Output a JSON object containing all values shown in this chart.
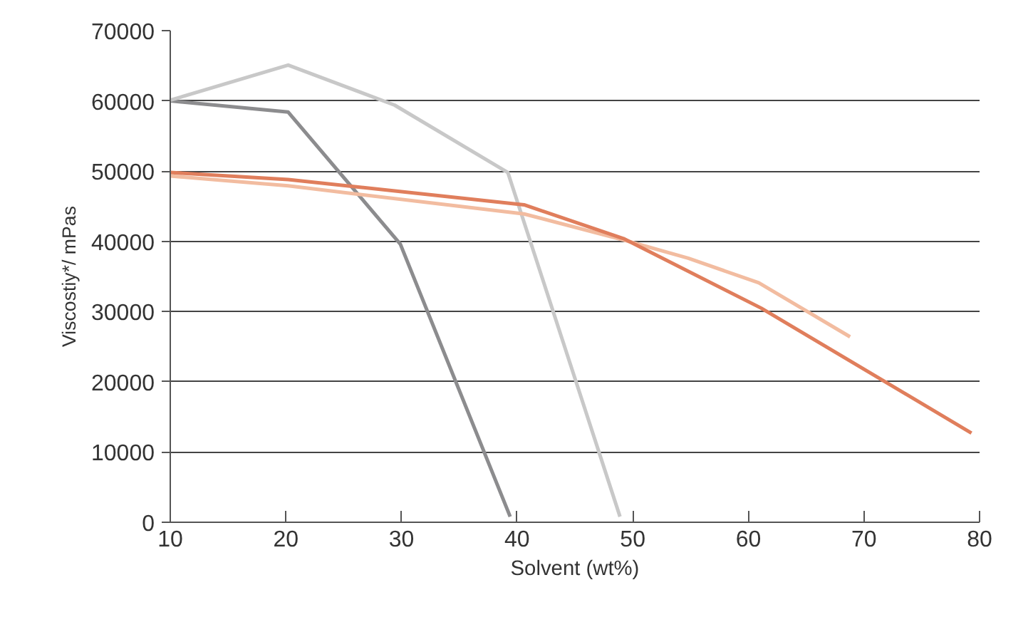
{
  "chart_data": {
    "type": "line",
    "xlabel": "Solvent (wt%)",
    "ylabel": "Viscostiy*/ mPas",
    "xlim": [
      10,
      80
    ],
    "xticks": [
      10,
      20,
      30,
      40,
      50,
      60,
      70,
      80
    ],
    "ylim": [
      0,
      70000
    ],
    "yticks": [
      0,
      10000,
      20000,
      30000,
      40000,
      50000,
      60000,
      70000
    ],
    "grid": "y",
    "marker": "none",
    "line_style": "solid",
    "series": [
      {
        "color": "#8c8c8e",
        "x": [
          10,
          20.2,
          29.9,
          39.4
        ],
        "values": [
          60000,
          58400,
          39600,
          800
        ]
      },
      {
        "color": "#c8c8c8",
        "x": [
          10,
          20.2,
          29.4,
          39.2,
          48.9
        ],
        "values": [
          60100,
          65100,
          59400,
          49800,
          800
        ]
      },
      {
        "color": "#f2bca0",
        "x": [
          10,
          20.2,
          40.6,
          49.2,
          54.8,
          60.9,
          68.8
        ],
        "values": [
          49300,
          47900,
          43900,
          40200,
          37600,
          34100,
          26400
        ]
      },
      {
        "color": "#e07e5c",
        "x": [
          10,
          20.2,
          40.6,
          49.2,
          61.1,
          79.3
        ],
        "values": [
          49800,
          48800,
          45200,
          40400,
          30500,
          12700
        ]
      }
    ]
  }
}
